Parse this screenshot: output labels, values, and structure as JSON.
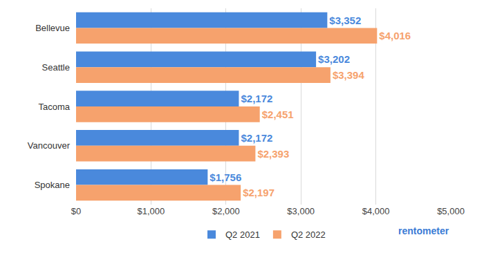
{
  "chart_data": {
    "type": "bar",
    "orientation": "horizontal",
    "categories": [
      "Bellevue",
      "Seattle",
      "Tacoma",
      "Vancouver",
      "Spokane"
    ],
    "series": [
      {
        "name": "Q2 2021",
        "color": "#4a89dc",
        "values": [
          3352,
          3202,
          2172,
          2172,
          1756
        ],
        "value_labels": [
          "$3,352",
          "$3,202",
          "$2,172",
          "$2,172",
          "$1,756"
        ]
      },
      {
        "name": "Q2 2022",
        "color": "#f6a26d",
        "values": [
          4016,
          3394,
          2451,
          2393,
          2197
        ],
        "value_labels": [
          "$4,016",
          "$3,394",
          "$2,451",
          "$2,393",
          "$2,197"
        ]
      }
    ],
    "xlim": [
      0,
      5000
    ],
    "xticks": [
      {
        "value": 0,
        "label": "$0"
      },
      {
        "value": 1000,
        "label": "$1,000"
      },
      {
        "value": 2000,
        "label": "$2,000"
      },
      {
        "value": 3000,
        "label": "$3,000"
      },
      {
        "value": 4000,
        "label": "$4,000"
      },
      {
        "value": 5000,
        "label": "$5,000"
      }
    ],
    "grid": true,
    "legend": "bottom",
    "data_labels": true,
    "annotations": [
      "rentometer"
    ]
  }
}
